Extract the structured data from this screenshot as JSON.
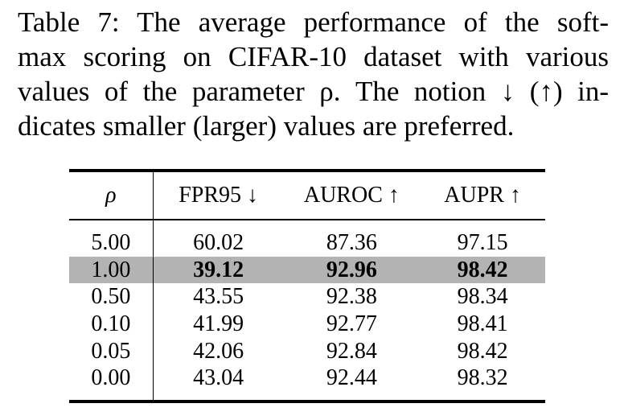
{
  "caption": {
    "lines": [
      "Table 7: The average performance of the soft-",
      "max scoring on CIFAR-10 dataset with various",
      "values of the parameter ρ. The notion ↓ (↑) in-",
      "dicates smaller (larger) values are preferred."
    ]
  },
  "table": {
    "headers": {
      "rho": "ρ",
      "fpr95": "FPR95 ↓",
      "auroc": "AUROC ↑",
      "aupr": "AUPR ↑"
    },
    "rows": [
      {
        "rho": "5.00",
        "fpr95": "60.02",
        "auroc": "87.36",
        "aupr": "97.15"
      },
      {
        "rho": "1.00",
        "fpr95": "39.12",
        "auroc": "92.96",
        "aupr": "98.42"
      },
      {
        "rho": "0.50",
        "fpr95": "43.55",
        "auroc": "92.38",
        "aupr": "98.34"
      },
      {
        "rho": "0.10",
        "fpr95": "41.99",
        "auroc": "92.77",
        "aupr": "98.41"
      },
      {
        "rho": "0.05",
        "fpr95": "42.06",
        "auroc": "92.84",
        "aupr": "98.42"
      },
      {
        "rho": "0.00",
        "fpr95": "43.04",
        "auroc": "92.44",
        "aupr": "98.32"
      }
    ],
    "highlight_color": "#b3b3b3"
  }
}
